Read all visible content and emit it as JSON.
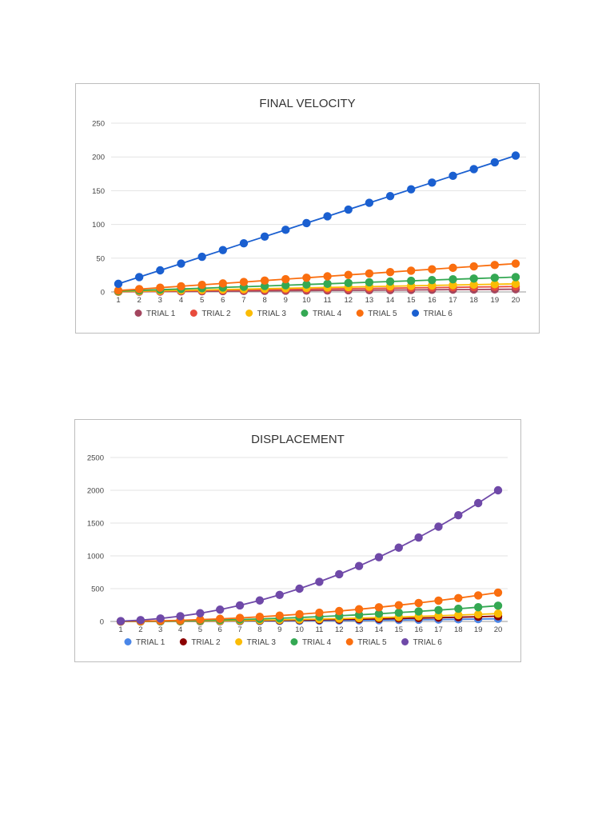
{
  "chart_data": [
    {
      "type": "line",
      "title": "FINAL VELOCITY",
      "xlabel": "",
      "ylabel": "",
      "ylim": [
        0,
        250
      ],
      "yticks": [
        0,
        50,
        100,
        150,
        200,
        250
      ],
      "grid": true,
      "legend": "bottom",
      "categories": [
        "1",
        "2",
        "3",
        "4",
        "5",
        "6",
        "7",
        "8",
        "9",
        "10",
        "11",
        "12",
        "13",
        "14",
        "15",
        "16",
        "17",
        "18",
        "19",
        "20"
      ],
      "series": [
        {
          "name": "TRIAL 1",
          "color": "#a3465f",
          "values": [
            0.2,
            0.4,
            0.6,
            0.8,
            1,
            1.2,
            1.4,
            1.6,
            1.8,
            2,
            2.2,
            2.4,
            2.6,
            2.8,
            3,
            3.2,
            3.4,
            3.6,
            3.8,
            4
          ]
        },
        {
          "name": "TRIAL 2",
          "color": "#e84b3c",
          "values": [
            0.4,
            0.8,
            1.2,
            1.6,
            2,
            2.4,
            2.8,
            3.2,
            3.6,
            4,
            4.4,
            4.8,
            5.2,
            5.6,
            6,
            6.4,
            6.8,
            7.2,
            7.6,
            8
          ]
        },
        {
          "name": "TRIAL 3",
          "color": "#fbbc05",
          "values": [
            0.6,
            1.2,
            1.8,
            2.4,
            3,
            3.6,
            4.2,
            4.8,
            5.4,
            6,
            6.6,
            7.2,
            7.8,
            8.4,
            9,
            9.6,
            10.2,
            10.8,
            11.4,
            12
          ]
        },
        {
          "name": "TRIAL 4",
          "color": "#34a853",
          "values": [
            1.1,
            2.2,
            3.3,
            4.4,
            5.5,
            6.6,
            7.7,
            8.8,
            9.9,
            11,
            12.1,
            13.2,
            14.3,
            15.4,
            16.5,
            17.6,
            18.7,
            19.8,
            20.9,
            22
          ]
        },
        {
          "name": "TRIAL 5",
          "color": "#fa6e0f",
          "values": [
            2.1,
            4.2,
            6.3,
            8.4,
            10.5,
            12.6,
            14.7,
            16.8,
            18.9,
            21,
            23.1,
            25.2,
            27.3,
            29.4,
            31.5,
            33.6,
            35.7,
            37.8,
            39.9,
            42
          ]
        },
        {
          "name": "TRIAL 6",
          "color": "#1a5fd0",
          "values": [
            12,
            22,
            32,
            42,
            52,
            62,
            72,
            82,
            92,
            102,
            112,
            122,
            132,
            142,
            152,
            162,
            172,
            182,
            192,
            202
          ]
        }
      ]
    },
    {
      "type": "line",
      "title": "DISPLACEMENT",
      "xlabel": "",
      "ylabel": "",
      "ylim": [
        0,
        2500
      ],
      "yticks": [
        0,
        500,
        1000,
        1500,
        2000,
        2500
      ],
      "grid": true,
      "legend": "bottom",
      "categories": [
        "1",
        "2",
        "3",
        "4",
        "5",
        "6",
        "7",
        "8",
        "9",
        "10",
        "11",
        "12",
        "13",
        "14",
        "15",
        "16",
        "17",
        "18",
        "19",
        "20"
      ],
      "series": [
        {
          "name": "TRIAL 1",
          "color": "#4a86e8",
          "values": [
            0.1,
            0.4,
            0.9,
            1.6,
            2.5,
            3.6,
            4.9,
            6.4,
            8.1,
            10,
            12.1,
            14.4,
            16.9,
            19.6,
            22.5,
            25.6,
            28.9,
            32.4,
            36.1,
            40
          ]
        },
        {
          "name": "TRIAL 2",
          "color": "#8b0000",
          "values": [
            0.2,
            0.8,
            1.8,
            3.2,
            5,
            7.2,
            9.8,
            12.8,
            16.2,
            20,
            24.2,
            28.8,
            33.8,
            39.2,
            45,
            51.2,
            57.8,
            64.8,
            72.2,
            80
          ]
        },
        {
          "name": "TRIAL 3",
          "color": "#fbbc05",
          "values": [
            0.3,
            1.2,
            2.7,
            4.8,
            7.5,
            10.8,
            14.7,
            19.2,
            24.3,
            30,
            36.3,
            43.2,
            50.7,
            58.8,
            67.5,
            76.8,
            86.7,
            97.2,
            108.3,
            120
          ]
        },
        {
          "name": "TRIAL 4",
          "color": "#34a853",
          "values": [
            0.6,
            2.4,
            5.4,
            9.6,
            15,
            21.6,
            29.4,
            38.4,
            48.6,
            60,
            72.6,
            86.4,
            101.4,
            117.6,
            135,
            153.6,
            173.4,
            194.4,
            216.6,
            240
          ]
        },
        {
          "name": "TRIAL 5",
          "color": "#fa6e0f",
          "values": [
            1.1,
            4.4,
            9.9,
            17.6,
            27.5,
            39.6,
            53.9,
            70.4,
            89.1,
            110,
            133.1,
            158.4,
            185.9,
            215.6,
            247.5,
            281.6,
            317.9,
            356.4,
            397.1,
            440
          ]
        },
        {
          "name": "TRIAL 6",
          "color": "#6f49a8",
          "values": [
            5,
            20,
            45,
            80,
            125,
            180,
            245,
            320,
            405,
            500,
            605,
            720,
            845,
            980,
            1125,
            1280,
            1445,
            1620,
            1805,
            2000
          ]
        }
      ]
    }
  ]
}
